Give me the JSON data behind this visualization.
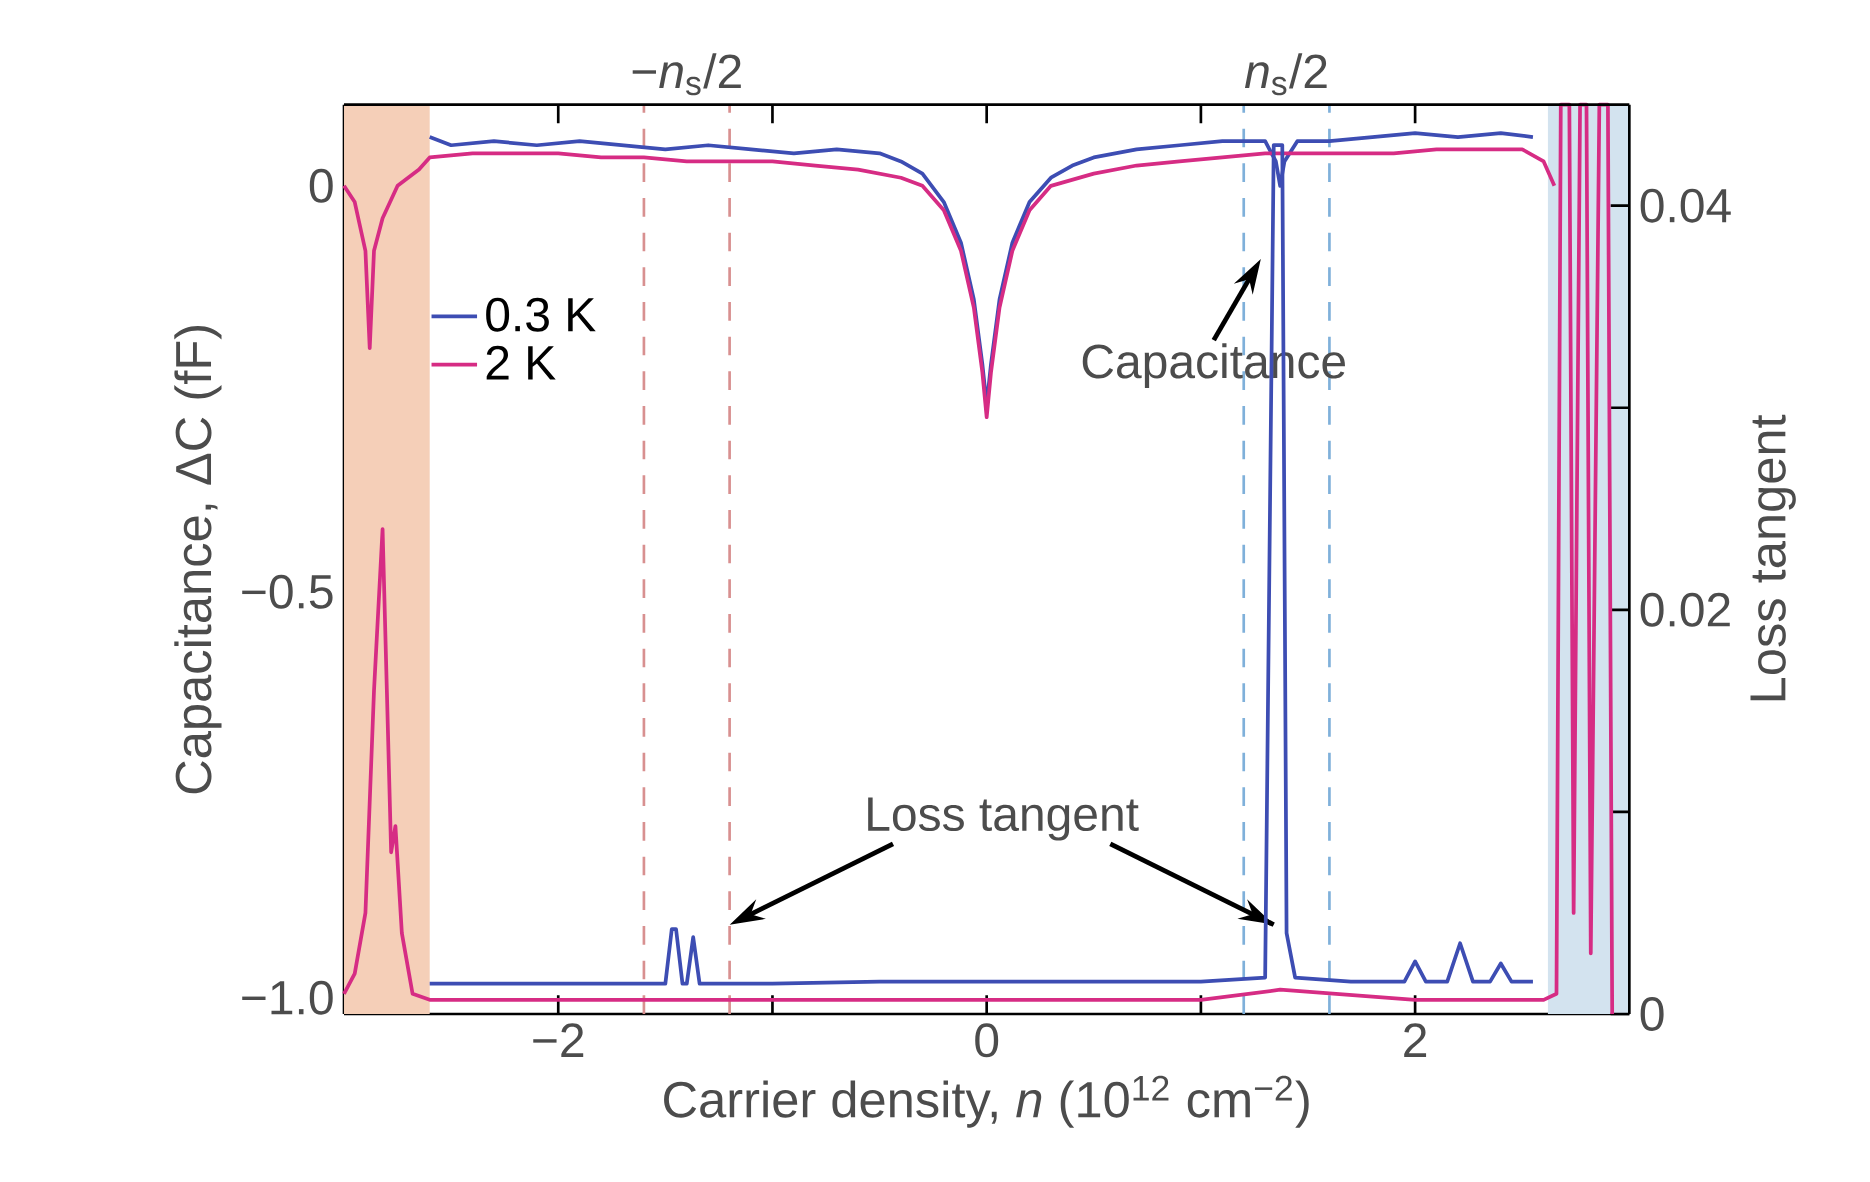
{
  "chart_data": {
    "type": "line",
    "xlabel": "Carrier density, *n* (10$^{12}$ cm$^{−2}$)",
    "ylabel": "Capacitance, ΔC (fF)",
    "y2label": "Loss tangent",
    "xlim": [
      -3,
      3
    ],
    "ylim": [
      -1.02,
      0.1
    ],
    "y2lim": [
      0,
      0.045
    ],
    "xticks": [
      {
        "value": -2,
        "label": "−2"
      },
      {
        "value": -1,
        "label": null
      },
      0,
      {
        "value": 1,
        "label": null
      },
      2
    ],
    "yticks": [
      {
        "value": -1.0,
        "label": "−1.0"
      },
      {
        "value": -0.9,
        "label": null
      },
      {
        "value": -0.8,
        "label": null
      },
      {
        "value": -0.7,
        "label": null
      },
      {
        "value": -0.6,
        "label": null
      },
      {
        "value": -0.5,
        "label": "−0.5"
      },
      {
        "value": -0.4,
        "label": null
      },
      {
        "value": -0.3,
        "label": null
      },
      {
        "value": -0.2,
        "label": null
      },
      {
        "value": -0.1,
        "label": null
      },
      0
    ],
    "y2ticks": [
      0,
      {
        "value": 0.01,
        "label": null
      },
      0.02,
      {
        "value": 0.03,
        "label": null
      },
      0.04
    ],
    "legend": "top left",
    "grid": false,
    "marker": "none",
    "line_style": "solid",
    "bands": [
      {
        "axis": "x",
        "from": -3,
        "to": -2.6,
        "color": "#f5cfb8"
      },
      {
        "axis": "x",
        "from": 2.62,
        "to": 3,
        "color": "#d3e3ef"
      }
    ],
    "ref_lines": [
      {
        "axis": "x",
        "value": -1.6,
        "color": "#d89090",
        "line_style": "dashed"
      },
      {
        "axis": "x",
        "value": -1.2,
        "color": "#d89090",
        "line_style": "dashed"
      },
      {
        "axis": "x",
        "value": 1.2,
        "color": "#7fb0da",
        "line_style": "dashed"
      },
      {
        "axis": "x",
        "value": 1.6,
        "color": "#7fb0da",
        "line_style": "dashed"
      }
    ],
    "annotations": [
      {
        "text": "Capacitance",
        "x": 1.31,
        "y": -0.07
      },
      {
        "text": "Loss tangent",
        "x": 1.34,
        "y": -0.91
      },
      "−*n*$_{s}$/2",
      "*n*$_{s}$/2"
    ],
    "series": [
      {
        "name": "0.3 K",
        "color": "#3d4db3",
        "x": [
          -2.6,
          -2.5,
          -2.3,
          -2.1,
          -1.9,
          -1.7,
          -1.5,
          -1.3,
          -1.1,
          -0.9,
          -0.7,
          -0.5,
          -0.4,
          -0.3,
          -0.2,
          -0.12,
          -0.06,
          -0.02,
          0,
          0.02,
          0.06,
          0.12,
          0.2,
          0.3,
          0.4,
          0.5,
          0.7,
          0.9,
          1.1,
          1.3,
          1.35,
          1.37,
          1.39,
          1.45,
          1.6,
          1.8,
          2.0,
          2.2,
          2.4,
          2.55
        ],
        "values": [
          0.06,
          0.05,
          0.055,
          0.05,
          0.055,
          0.05,
          0.045,
          0.05,
          0.045,
          0.04,
          0.045,
          0.04,
          0.03,
          0.015,
          -0.02,
          -0.07,
          -0.14,
          -0.22,
          -0.27,
          -0.22,
          -0.14,
          -0.07,
          -0.02,
          0.01,
          0.025,
          0.035,
          0.045,
          0.05,
          0.055,
          0.055,
          0.03,
          0.0,
          0.03,
          0.055,
          0.055,
          0.06,
          0.065,
          0.06,
          0.065,
          0.06
        ]
      },
      {
        "name": "2 K",
        "color": "#d62c84",
        "x": [
          -3,
          -2.95,
          -2.9,
          -2.88,
          -2.86,
          -2.82,
          -2.75,
          -2.65,
          -2.6,
          -2.4,
          -2.2,
          -2.0,
          -1.8,
          -1.6,
          -1.4,
          -1.2,
          -1.0,
          -0.8,
          -0.6,
          -0.4,
          -0.3,
          -0.2,
          -0.12,
          -0.06,
          -0.02,
          0,
          0.02,
          0.06,
          0.12,
          0.2,
          0.3,
          0.5,
          0.7,
          0.9,
          1.1,
          1.3,
          1.5,
          1.7,
          1.9,
          2.1,
          2.3,
          2.5,
          2.6,
          2.65
        ],
        "values": [
          0.0,
          -0.02,
          -0.08,
          -0.2,
          -0.08,
          -0.04,
          0.0,
          0.02,
          0.035,
          0.04,
          0.04,
          0.04,
          0.035,
          0.035,
          0.03,
          0.03,
          0.03,
          0.025,
          0.02,
          0.01,
          0.0,
          -0.03,
          -0.08,
          -0.15,
          -0.23,
          -0.285,
          -0.23,
          -0.15,
          -0.08,
          -0.03,
          0.0,
          0.015,
          0.025,
          0.03,
          0.035,
          0.04,
          0.04,
          0.04,
          0.04,
          0.045,
          0.045,
          0.045,
          0.03,
          0.0
        ]
      },
      {
        "axis": "y2",
        "color": "#3d4db3",
        "x": [
          -2.6,
          -2.2,
          -1.8,
          -1.5,
          -1.47,
          -1.45,
          -1.42,
          -1.4,
          -1.37,
          -1.34,
          -1.3,
          -1.0,
          -0.5,
          0,
          0.5,
          1.0,
          1.3,
          1.34,
          1.36,
          1.38,
          1.4,
          1.44,
          1.7,
          1.95,
          2.0,
          2.05,
          2.15,
          2.21,
          2.27,
          2.35,
          2.4,
          2.45,
          2.55
        ],
        "values": [
          0.0015,
          0.0015,
          0.0015,
          0.0015,
          0.0042,
          0.0042,
          0.0015,
          0.0015,
          0.0038,
          0.0015,
          0.0015,
          0.0015,
          0.0016,
          0.0016,
          0.0016,
          0.0016,
          0.0018,
          0.043,
          0.043,
          0.043,
          0.004,
          0.0018,
          0.0016,
          0.0016,
          0.0026,
          0.0016,
          0.0016,
          0.0035,
          0.0016,
          0.0016,
          0.0025,
          0.0016,
          0.0016
        ]
      },
      {
        "axis": "y2",
        "color": "#d62c84",
        "x": [
          -3,
          -2.95,
          -2.9,
          -2.86,
          -2.82,
          -2.8,
          -2.78,
          -2.76,
          -2.73,
          -2.68,
          -2.6,
          -2.0,
          -1.0,
          0,
          1.0,
          1.37,
          2.0,
          2.6,
          2.66,
          2.68,
          2.72,
          2.74,
          2.77,
          2.8,
          2.82,
          2.86,
          2.9,
          2.92
        ],
        "values": [
          0.001,
          0.002,
          0.005,
          0.016,
          0.024,
          0.016,
          0.008,
          0.0093,
          0.004,
          0.001,
          0.0007,
          0.0007,
          0.0007,
          0.0007,
          0.0007,
          0.0012,
          0.0007,
          0.0007,
          0.001,
          0.045,
          0.045,
          0.005,
          0.045,
          0.045,
          0.003,
          0.045,
          0.045,
          0.0
        ]
      }
    ]
  }
}
